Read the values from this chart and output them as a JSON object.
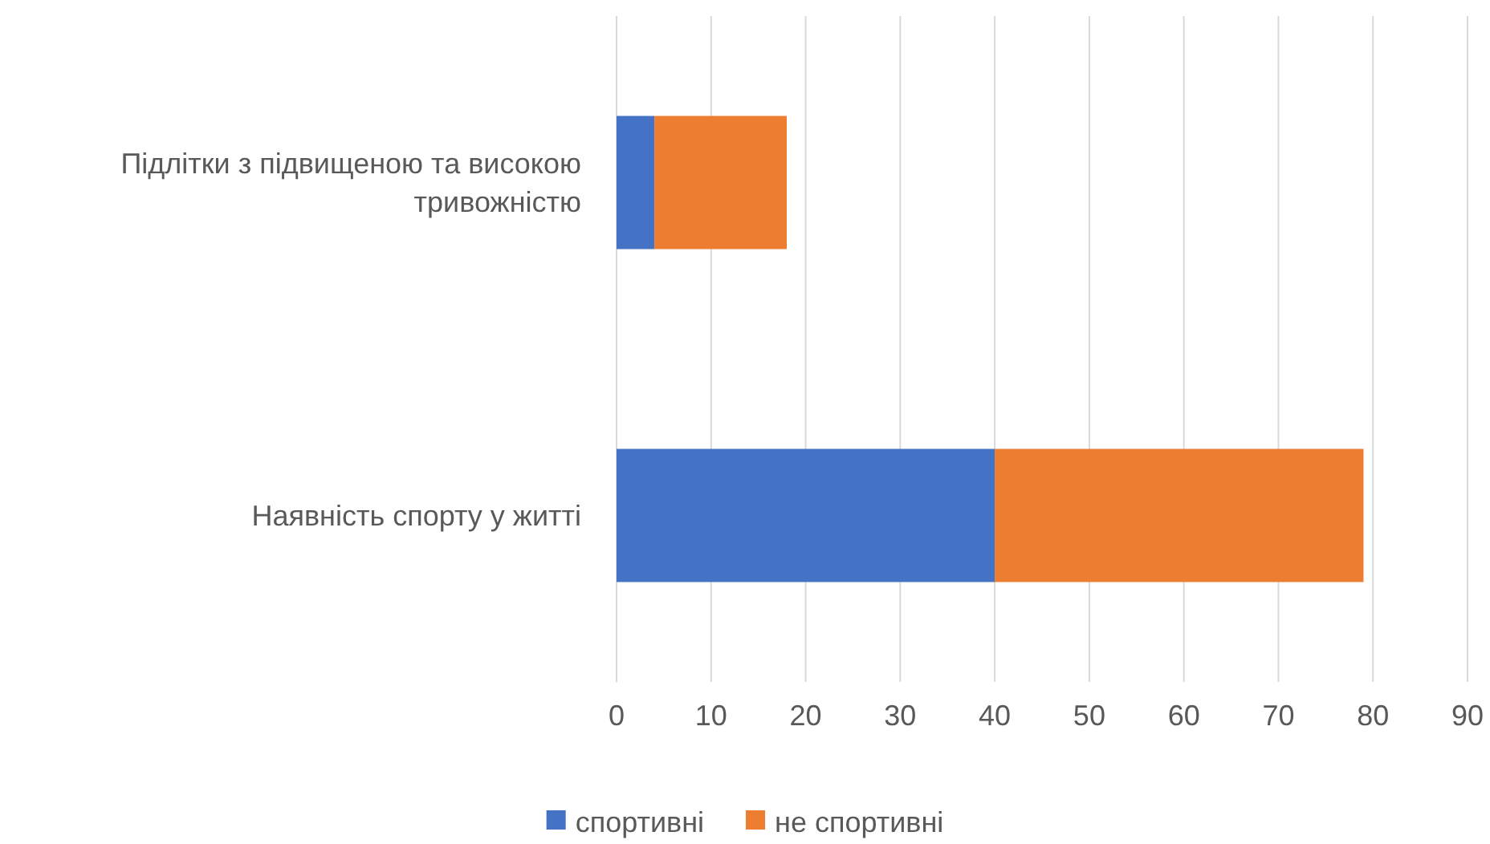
{
  "chart_data": {
    "type": "bar",
    "orientation": "horizontal",
    "stacked": true,
    "categories": [
      "Підлітки з підвищеною та високою тривожністю",
      "Наявність спорту у житті"
    ],
    "series": [
      {
        "name": "спортивні",
        "color": "#4472c4",
        "values": [
          4,
          40
        ]
      },
      {
        "name": "не спортивні",
        "color": "#ed7d31",
        "values": [
          14,
          39
        ]
      }
    ],
    "xlim": [
      0,
      90
    ],
    "xticks": [
      0,
      10,
      20,
      30,
      40,
      50,
      60,
      70,
      80,
      90
    ],
    "grid": "x",
    "legend": "bottom"
  }
}
